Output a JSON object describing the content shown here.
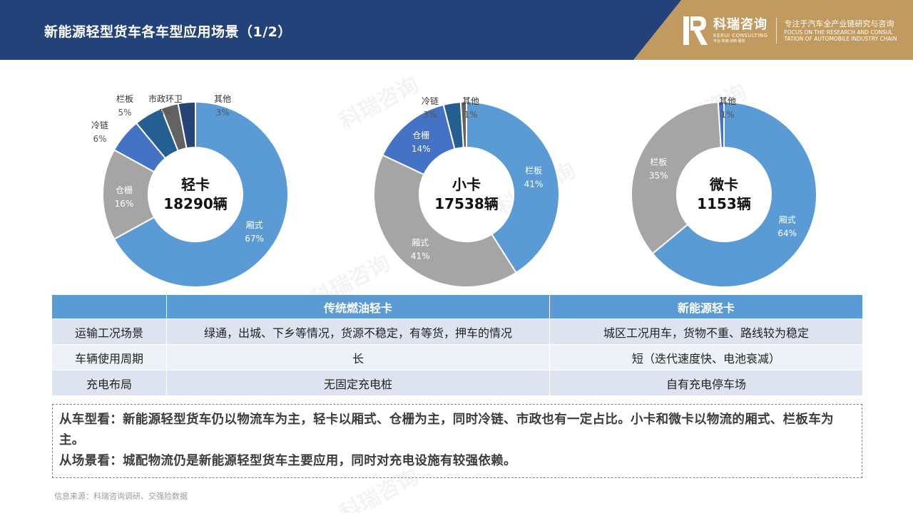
{
  "header": {
    "title": "新能源轻型货车各车型应用场景（1/2）",
    "logo": {
      "name_cn": "科瑞咨询",
      "name_en": "KERUI CONSULTING",
      "name_sub": "专业·权威·创新·服务",
      "tagline_cn": "专注于汽车全产业链研究与咨询",
      "tagline_en_1": "FOCUS ON THE RESEARCH AND CONSUL",
      "tagline_en_2": "TATION OF AUTOMOBILE INDUSTRY CHAIN"
    },
    "colors": {
      "bar": "#24427a",
      "accent": "#c09a5e"
    }
  },
  "watermark_text": "科瑞咨询",
  "chart_data": [
    {
      "type": "pie",
      "center_label": "轻卡",
      "center_value": "18290辆",
      "slices": [
        {
          "label": "厢式",
          "pct_label": "67%",
          "value": 67,
          "color": "#5b9bd5"
        },
        {
          "label": "仓栅",
          "pct_label": "16%",
          "value": 16,
          "color": "#a5a5a5"
        },
        {
          "label": "冷链",
          "pct_label": "6%",
          "value": 6,
          "color": "#4472c4"
        },
        {
          "label": "栏板",
          "pct_label": "5%",
          "value": 5,
          "color": "#255e91"
        },
        {
          "label": "市政环卫",
          "pct_label": "3%",
          "value": 3,
          "color": "#636363"
        },
        {
          "label": "其他",
          "pct_label": "3%",
          "value": 3,
          "color": "#264478"
        }
      ]
    },
    {
      "type": "pie",
      "center_label": "小卡",
      "center_value": "17538辆",
      "slices": [
        {
          "label": "栏板",
          "pct_label": "41%",
          "value": 41,
          "color": "#5b9bd5"
        },
        {
          "label": "厢式",
          "pct_label": "41%",
          "value": 41,
          "color": "#a5a5a5"
        },
        {
          "label": "仓栅",
          "pct_label": "14%",
          "value": 14,
          "color": "#4472c4"
        },
        {
          "label": "冷链",
          "pct_label": "3%",
          "value": 3,
          "color": "#255e91"
        },
        {
          "label": "其他",
          "pct_label": "1%",
          "value": 1,
          "color": "#636363"
        }
      ]
    },
    {
      "type": "pie",
      "center_label": "微卡",
      "center_value": "1153辆",
      "slices": [
        {
          "label": "厢式",
          "pct_label": "64%",
          "value": 64,
          "color": "#5b9bd5"
        },
        {
          "label": "栏板",
          "pct_label": "35%",
          "value": 35,
          "color": "#a5a5a5"
        },
        {
          "label": "其他",
          "pct_label": "1%",
          "value": 1,
          "color": "#4472c4"
        }
      ]
    }
  ],
  "table": {
    "headers": [
      "",
      "传统燃油轻卡",
      "新能源轻卡"
    ],
    "rows": [
      [
        "运输工况场景",
        "绿通，出城、下乡等情况，货源不稳定，有等货，押车的情况",
        "城区工况用车，货物不重、路线较为稳定"
      ],
      [
        "车辆使用周期",
        "长",
        "短（迭代速度快、电池衰减）"
      ],
      [
        "充电布局",
        "无固定充电桩",
        "自有充电停车场"
      ]
    ]
  },
  "summary": {
    "line1": "从车型看：新能源轻型货车仍以物流车为主，轻卡以厢式、仓栅为主，同时冷链、市政也有一定占比。小卡和微卡以物流的厢式、栏板车为主。",
    "line2": "从场景看：城配物流仍是新能源轻型货车主要应用，同时对充电设施有较强依赖。"
  },
  "source": "信息来源：科瑞咨询调研、交强险数据"
}
